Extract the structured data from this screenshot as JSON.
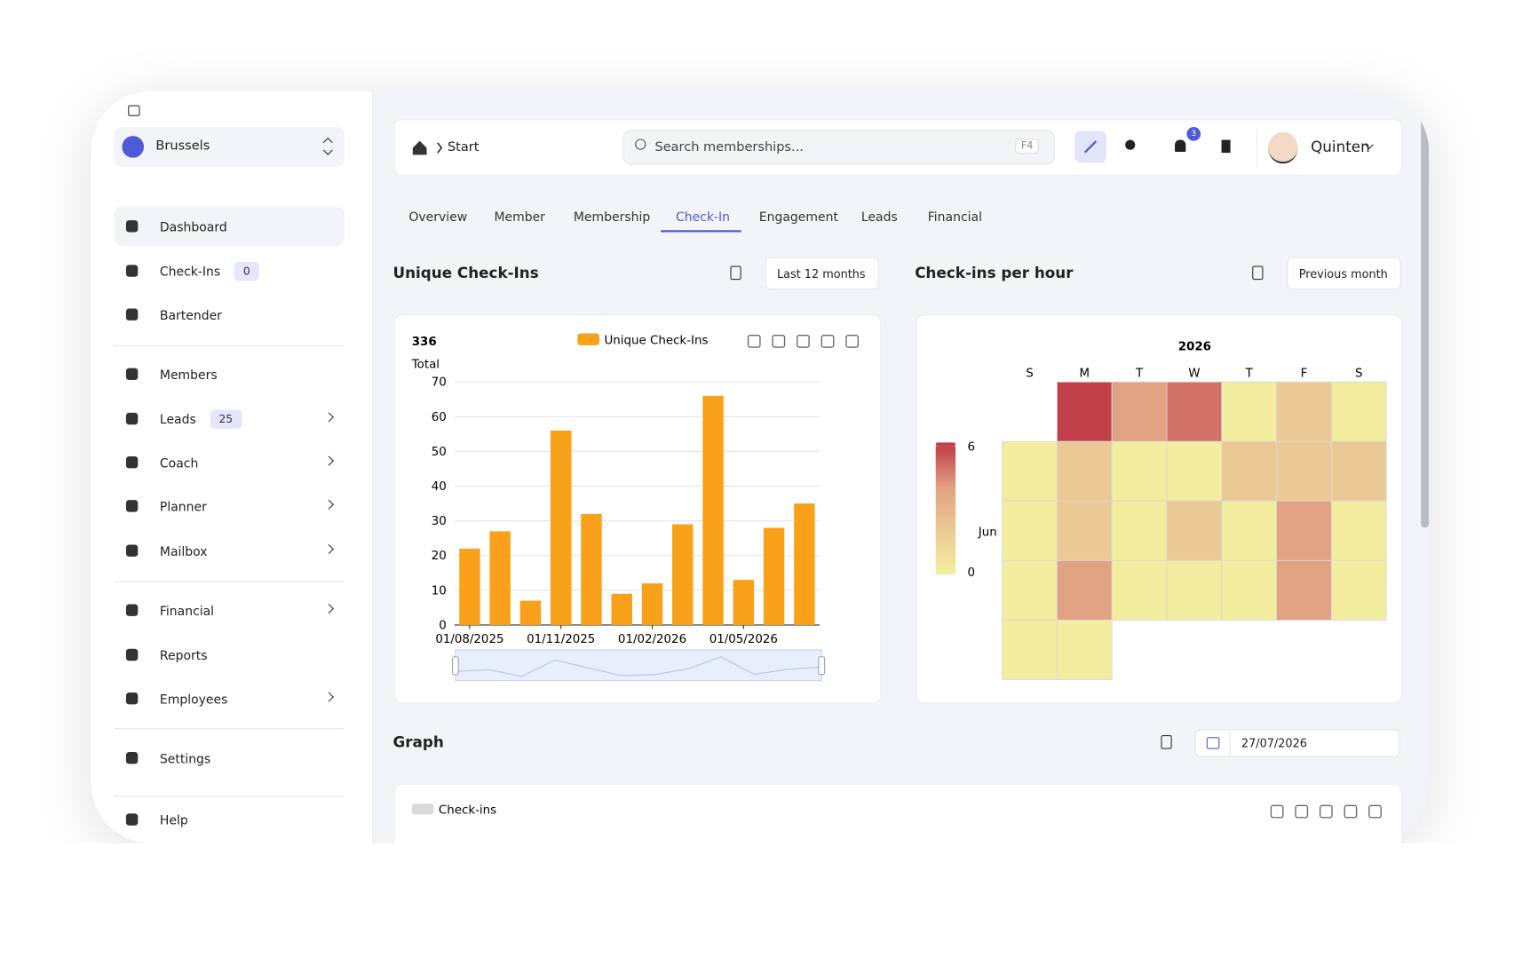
{
  "sidebar": {
    "location": "Brussels",
    "items": [
      {
        "label": "Dashboard"
      },
      {
        "label": "Check-Ins",
        "badge": 0
      },
      {
        "label": "Bartender"
      },
      {
        "label": "Members"
      },
      {
        "label": "Leads",
        "badge": 25
      },
      {
        "label": "Coach"
      },
      {
        "label": "Planner"
      },
      {
        "label": "Mailbox"
      },
      {
        "label": "Financial"
      },
      {
        "label": "Reports"
      },
      {
        "label": "Employees"
      },
      {
        "label": "Settings"
      },
      {
        "label": "Help"
      }
    ]
  },
  "topbar": {
    "breadcrumb": "Start",
    "search_placeholder": "Search memberships...",
    "shortcut": "F4",
    "notifications": 3,
    "user": "Quinten"
  },
  "tabs": {
    "items": [
      "Overview",
      "Member",
      "Membership",
      "Check-In",
      "Engagement",
      "Leads",
      "Financial"
    ],
    "active": 3
  },
  "sections": {
    "unique": {
      "title": "Unique Check-Ins",
      "range": "Last 12 months"
    },
    "hourly": {
      "title": "Check-ins per hour",
      "range": "Previous month"
    },
    "graph": {
      "title": "Graph",
      "date": "27/07/2026"
    }
  },
  "chart_data": [
    {
      "type": "bar",
      "total": 336,
      "total_label": "Total",
      "categories": [
        "01/08/2025",
        null,
        null,
        "01/11/2025",
        null,
        null,
        "01/02/2026",
        null,
        null,
        "01/05/2026",
        null,
        null
      ],
      "series": [
        {
          "name": "Unique Check-Ins",
          "color": "#f9a11b",
          "values": [
            22,
            27,
            7,
            56,
            32,
            9,
            12,
            29,
            66,
            13,
            28,
            35
          ]
        }
      ],
      "ylim": [
        0,
        70
      ],
      "yticks": [
        0,
        10,
        20,
        30,
        40,
        50,
        60,
        70
      ],
      "grid": true
    },
    {
      "type": "heatmap",
      "title": "2026",
      "days": [
        "S",
        "M",
        "T",
        "W",
        "T",
        "F",
        "S"
      ],
      "month": "Jun",
      "vlim": [
        0,
        6
      ],
      "colors": [
        "#f3ed9f",
        "#ebc995",
        "#e1a283",
        "#c2404a"
      ],
      "weeks": [
        [
          null,
          6,
          4,
          5,
          0,
          2,
          0
        ],
        [
          0,
          2,
          0,
          0,
          2,
          2,
          2
        ],
        [
          0,
          2,
          0,
          2,
          0,
          4,
          0
        ],
        [
          0,
          4,
          0,
          0,
          0,
          4,
          0
        ],
        [
          0,
          0,
          null,
          null,
          null,
          null,
          null
        ]
      ]
    },
    {
      "type": "line",
      "series": [
        {
          "name": "Check-ins",
          "color": "#d9d9d9"
        }
      ]
    }
  ]
}
